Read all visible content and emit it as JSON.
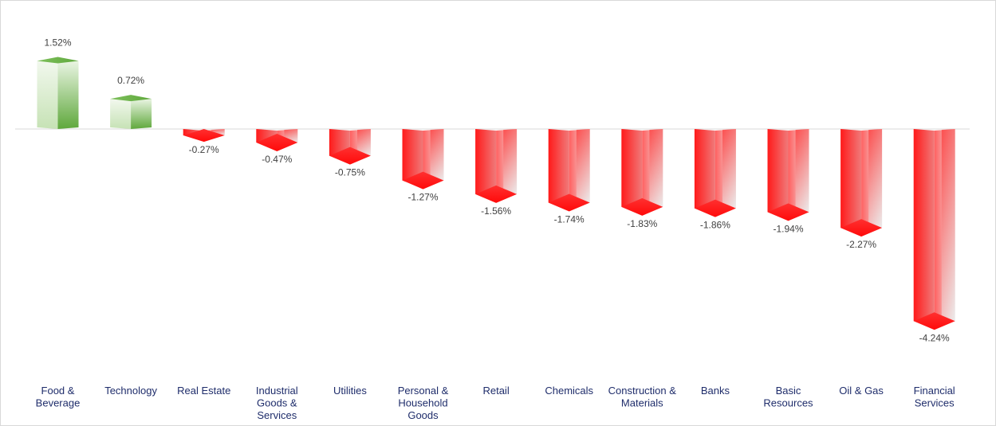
{
  "chart_data": {
    "type": "bar",
    "style": "3d-column",
    "categories": [
      "Food & Beverage",
      "Technology",
      "Real Estate",
      "Industrial Goods & Services",
      "Utilities",
      "Personal & Household Goods",
      "Retail",
      "Chemicals",
      "Construction & Materials",
      "Banks",
      "Basic Resources",
      "Oil & Gas",
      "Financial Services"
    ],
    "category_lines": [
      [
        "Food &",
        "Beverage"
      ],
      [
        "Technology"
      ],
      [
        "Real Estate"
      ],
      [
        "Industrial",
        "Goods &",
        "Services"
      ],
      [
        "Utilities"
      ],
      [
        "Personal &",
        "Household",
        "Goods"
      ],
      [
        "Retail"
      ],
      [
        "Chemicals"
      ],
      [
        "Construction &",
        "Materials"
      ],
      [
        "Banks"
      ],
      [
        "Basic",
        "Resources"
      ],
      [
        "Oil & Gas"
      ],
      [
        "Financial",
        "Services"
      ]
    ],
    "values": [
      1.52,
      0.72,
      -0.27,
      -0.47,
      -0.75,
      -1.27,
      -1.56,
      -1.74,
      -1.83,
      -1.86,
      -1.94,
      -2.27,
      -4.24
    ],
    "data_labels": [
      "1.52%",
      "0.72%",
      "-0.27%",
      "-0.47%",
      "-0.75%",
      "-1.27%",
      "-1.56%",
      "-1.74%",
      "-1.83%",
      "-1.86%",
      "-1.94%",
      "-2.27%",
      "-4.24%"
    ],
    "unit": "%",
    "ylim": [
      -4.5,
      1.7
    ],
    "grid": false,
    "legend": "none",
    "colors": {
      "positive_dark": "#5fa83c",
      "positive_light": "#f2f8ee",
      "negative_dark": "#ff1a1a",
      "negative_light": "#ececec",
      "zero_line": "#d9d9d9",
      "category_text": "#1f2d6b",
      "label_text": "#404040"
    }
  }
}
